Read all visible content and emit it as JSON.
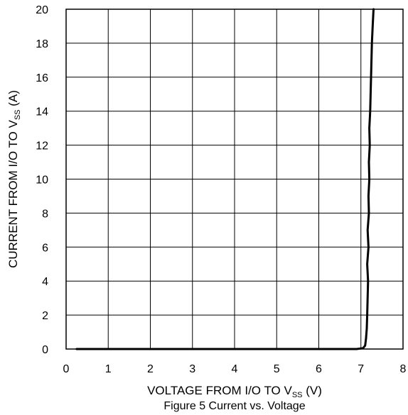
{
  "chart_data": {
    "type": "line",
    "title": "",
    "caption": "Figure 5 Current  vs. Voltage",
    "xlabel": {
      "main": "VOLTAGE FROM I/O TO V",
      "sub": "SS",
      "suffix": " (V)"
    },
    "ylabel": {
      "main": "CURRENT FROM  I/O TO V",
      "sub": "SS",
      "suffix": " (A)"
    },
    "xlim": [
      0,
      8
    ],
    "ylim": [
      0,
      20
    ],
    "xticks": [
      0,
      1,
      2,
      3,
      4,
      5,
      6,
      7,
      8
    ],
    "yticks": [
      0,
      2,
      4,
      6,
      8,
      10,
      12,
      14,
      16,
      18,
      20
    ],
    "grid": true,
    "legend": "none",
    "series": [
      {
        "color": "#000000",
        "x": [
          0.25,
          1.0,
          2.0,
          3.0,
          4.0,
          5.0,
          6.0,
          6.9,
          7.05,
          7.1,
          7.12,
          7.14,
          7.15,
          7.16,
          7.17,
          7.15,
          7.18,
          7.16,
          7.19,
          7.18,
          7.2,
          7.19,
          7.21,
          7.2,
          7.22,
          7.23,
          7.24,
          7.25,
          7.26,
          7.28,
          7.3
        ],
        "y": [
          0.0,
          0.0,
          0.0,
          0.0,
          0.0,
          0.0,
          0.0,
          0.0,
          0.05,
          0.2,
          0.6,
          1.2,
          2.0,
          3.0,
          4.0,
          5.0,
          6.0,
          7.0,
          8.0,
          9.0,
          10.0,
          11.0,
          12.0,
          13.0,
          14.0,
          15.0,
          16.0,
          17.0,
          18.0,
          19.0,
          20.0
        ]
      }
    ]
  }
}
